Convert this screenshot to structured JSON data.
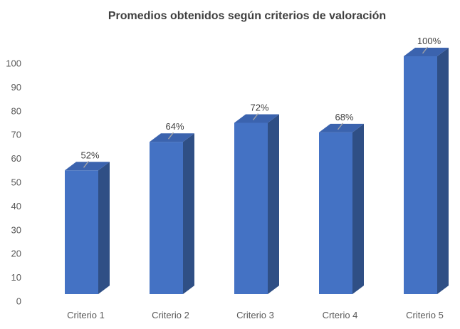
{
  "chart_data": {
    "type": "bar",
    "title": "Promedios  obtenidos según criterios de valoración",
    "categories": [
      "Criterio 1",
      "Criterio 2",
      "Criterio 3",
      "Crterio 4",
      "Criterio 5"
    ],
    "values": [
      52,
      64,
      72,
      68,
      100
    ],
    "data_labels": [
      "52%",
      "64%",
      "72%",
      "68%",
      "100%"
    ],
    "y_ticks": [
      "0",
      "10",
      "20",
      "30",
      "40",
      "50",
      "60",
      "70",
      "80",
      "90",
      "100"
    ],
    "ylim": [
      0,
      100
    ],
    "xlabel": "",
    "ylabel": "",
    "grid": false,
    "legend": "none",
    "style": "3d-column",
    "colors": {
      "bar_front": "#4472C4",
      "bar_side": "#2F4F85",
      "bar_top": "#3B63AE",
      "leader_line": "#A6A6A6"
    }
  }
}
